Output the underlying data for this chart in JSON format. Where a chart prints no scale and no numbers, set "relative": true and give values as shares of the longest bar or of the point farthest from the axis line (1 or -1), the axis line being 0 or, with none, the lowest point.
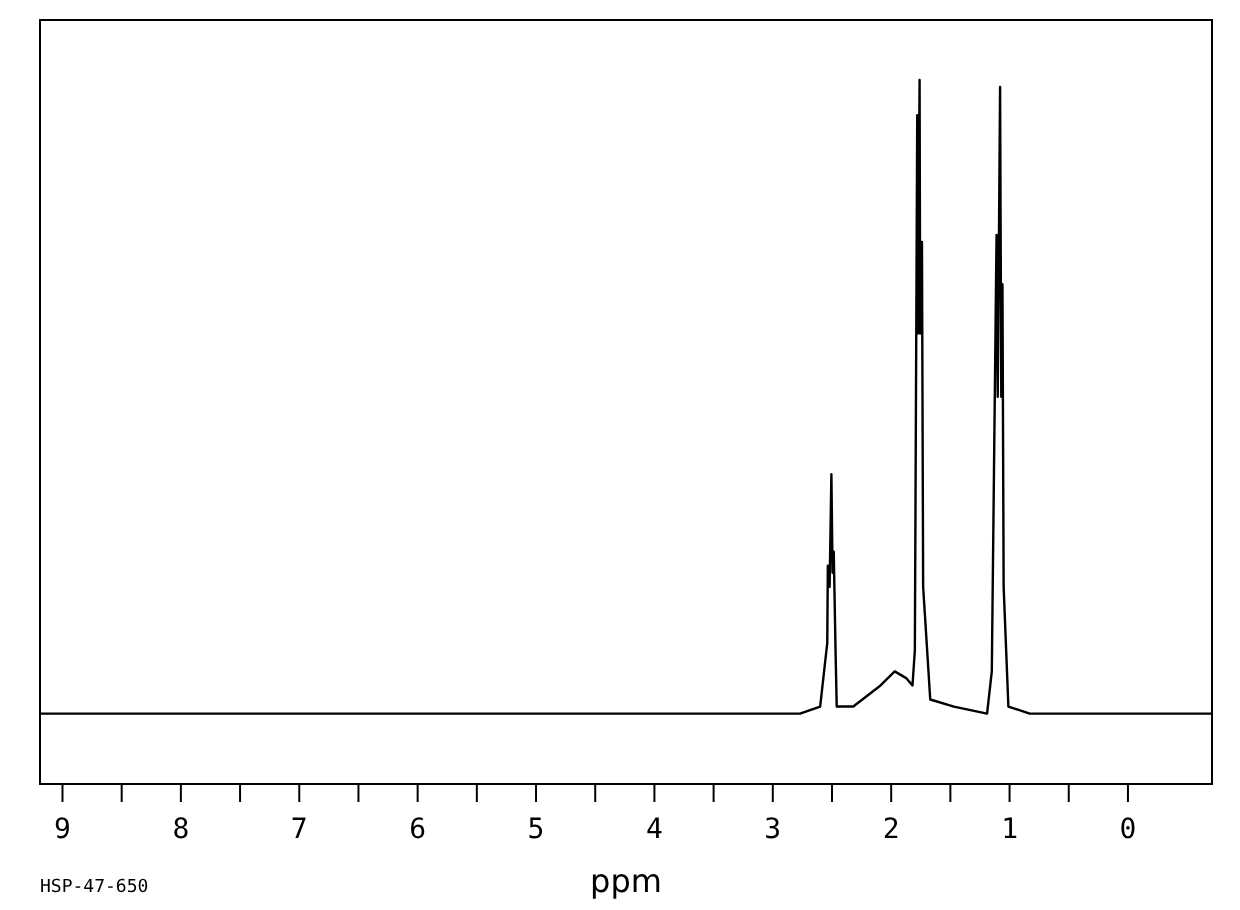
{
  "chart_data": {
    "type": "line",
    "relative": true,
    "xlabel": "ppm",
    "annotations": [
      "HSP-47-650"
    ],
    "tick_labels": "x",
    "xlim": [
      9.19,
      -0.71
    ],
    "xticks": [
      9,
      {
        "value": 8.5,
        "label": null
      },
      8,
      {
        "value": 7.5,
        "label": null
      },
      7,
      {
        "value": 6.5,
        "label": null
      },
      6,
      {
        "value": 5.5,
        "label": null
      },
      5,
      {
        "value": 4.5,
        "label": null
      },
      4,
      {
        "value": 3.5,
        "label": null
      },
      3,
      {
        "value": 2.5,
        "label": null
      },
      2,
      {
        "value": 1.5,
        "label": null
      },
      1,
      {
        "value": 0.5,
        "label": null
      },
      0
    ],
    "x": [
      9.19,
      3.2,
      3.14,
      2.77,
      2.6,
      2.54,
      2.535,
      2.52,
      2.505,
      2.495,
      2.485,
      2.47,
      2.46,
      2.43,
      2.32,
      2.09,
      1.97,
      1.87,
      1.82,
      1.8,
      1.78,
      1.775,
      1.76,
      1.755,
      1.74,
      1.73,
      1.67,
      1.47,
      1.19,
      1.15,
      1.11,
      1.1,
      1.08,
      1.07,
      1.06,
      1.05,
      1.01,
      0.83,
      -0.71
    ],
    "series": [
      {
        "color": "#000000",
        "values": [
          0.1,
          0.1,
          0.1,
          0.1,
          0.11,
          0.2,
          0.31,
          0.28,
          0.44,
          0.3,
          0.33,
          0.19,
          0.11,
          0.11,
          0.11,
          0.14,
          0.16,
          0.15,
          0.14,
          0.19,
          0.95,
          0.64,
          1,
          0.64,
          0.77,
          0.28,
          0.12,
          0.11,
          0.1,
          0.16,
          0.78,
          0.55,
          0.99,
          0.55,
          0.71,
          0.28,
          0.11,
          0.1,
          0.1
        ]
      }
    ]
  }
}
